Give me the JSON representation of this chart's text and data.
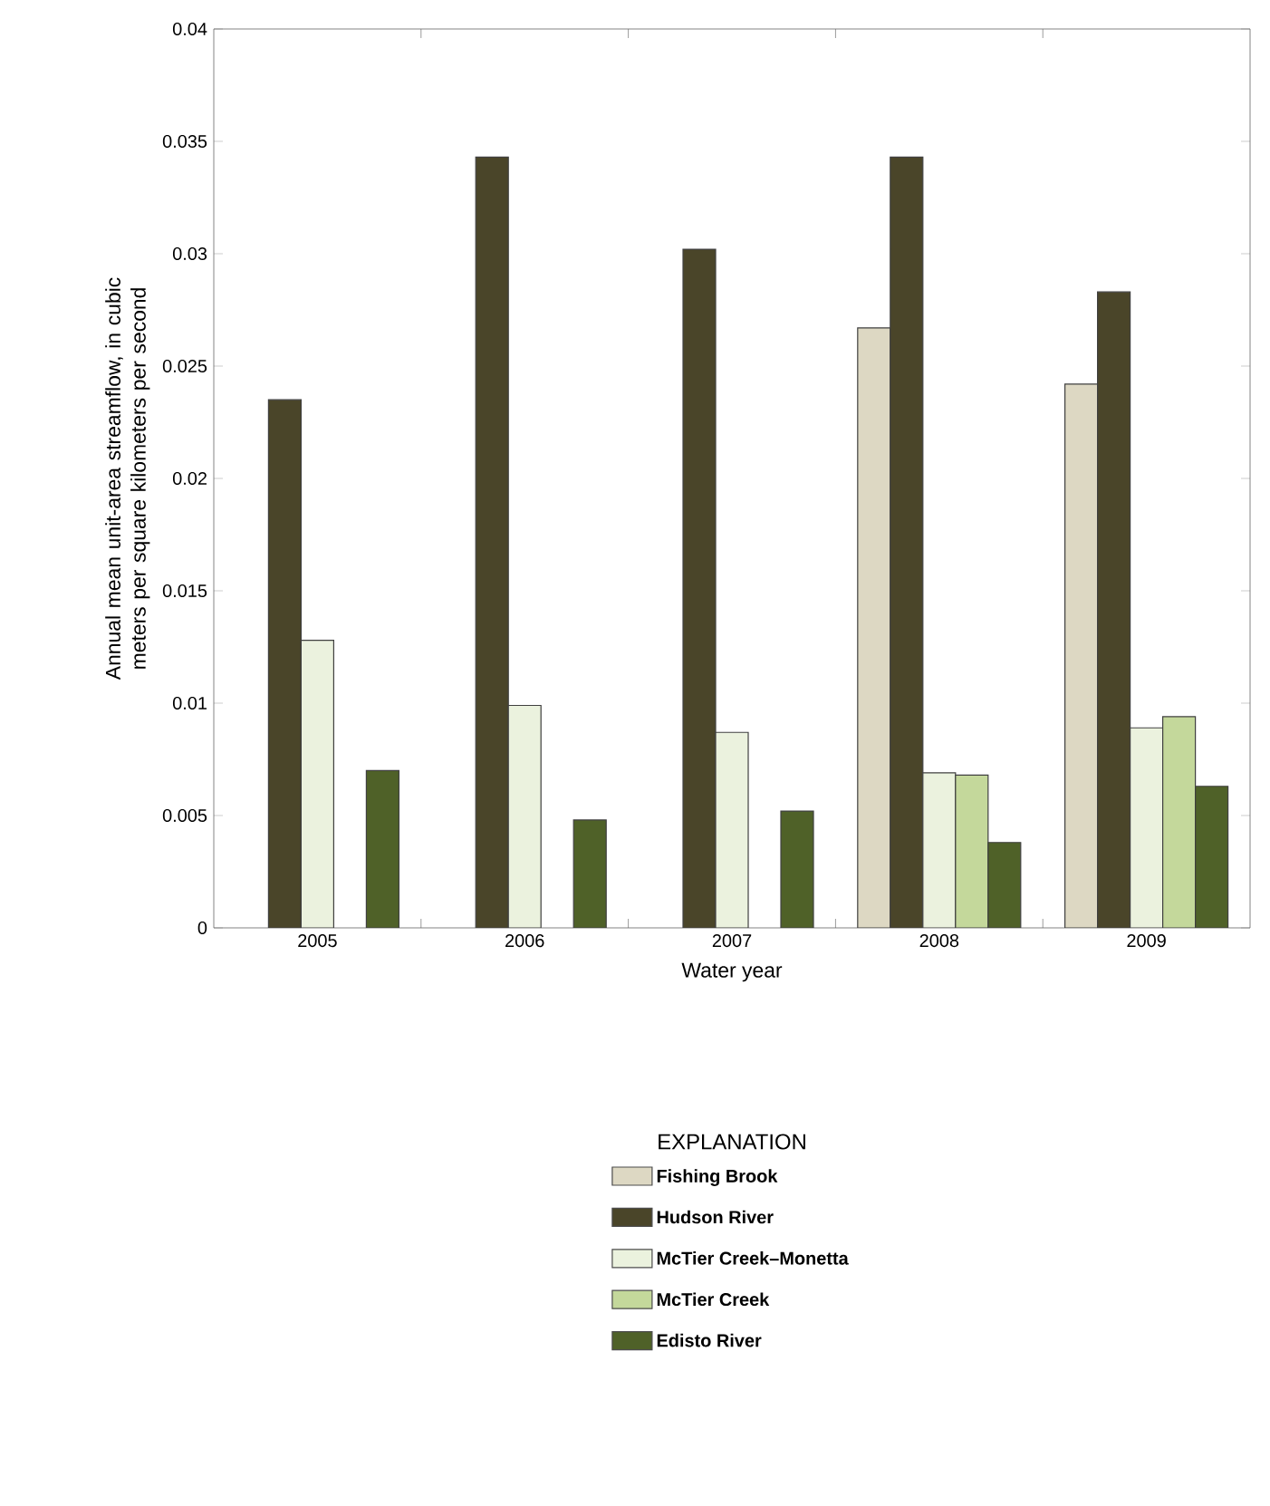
{
  "chart_data": {
    "type": "bar",
    "xlabel": "Water year",
    "ylabel": "Annual mean unit-area  streamflow, in cubic meters per square kilometers per second",
    "legend_title": "EXPLANATION",
    "legend": "bottom",
    "categories": [
      "2005",
      "2006",
      "2007",
      "2008",
      "2009"
    ],
    "series": [
      {
        "name": "Fishing Brook",
        "color": "#ddd8c3",
        "values": [
          null,
          null,
          null,
          0.0267,
          0.0242
        ]
      },
      {
        "name": "Hudson River",
        "color": "#4a4529",
        "values": [
          0.0235,
          0.0343,
          0.0302,
          0.0343,
          0.0283
        ]
      },
      {
        "name": "McTier Creek–Monetta",
        "color": "#ebf2de",
        "values": [
          0.0128,
          0.0099,
          0.0087,
          0.0069,
          0.0089
        ]
      },
      {
        "name": "McTier Creek",
        "color": "#c4d89b",
        "values": [
          null,
          null,
          null,
          0.0068,
          0.0094
        ]
      },
      {
        "name": "Edisto River",
        "color": "#4f6128",
        "values": [
          0.007,
          0.0048,
          0.0052,
          0.0038,
          0.0063
        ]
      }
    ],
    "ylim": [
      0,
      0.04
    ],
    "yticks": [
      0,
      0.005,
      0.01,
      0.015,
      0.02,
      0.025,
      0.03,
      0.035,
      0.04
    ]
  }
}
